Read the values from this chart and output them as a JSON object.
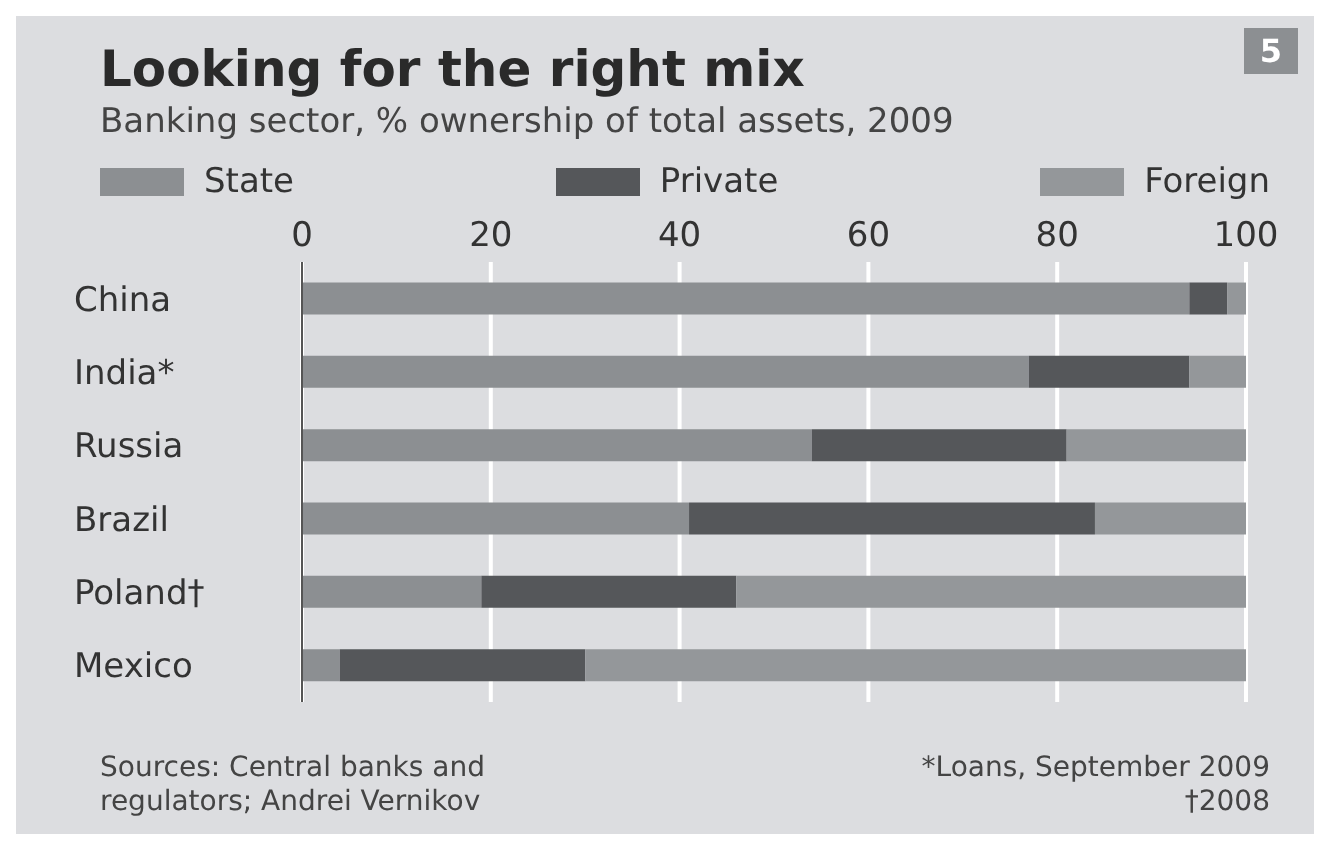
{
  "chart_data": {
    "type": "bar",
    "orientation": "horizontal",
    "stacked": true,
    "title": "Looking for the right mix",
    "subtitle": "Banking sector, % ownership of total assets, 2009",
    "categories": [
      "China",
      "India*",
      "Russia",
      "Brazil",
      "Poland†",
      "Mexico"
    ],
    "series": [
      {
        "name": "State",
        "color": "#8c8f92",
        "values": [
          94,
          77,
          54,
          41,
          19,
          4
        ]
      },
      {
        "name": "Private",
        "color": "#55575a",
        "values": [
          4,
          17,
          27,
          43,
          27,
          26
        ]
      },
      {
        "name": "Foreign",
        "color": "#94979a",
        "values": [
          2,
          6,
          19,
          16,
          54,
          70
        ]
      }
    ],
    "xlim": [
      0,
      100
    ],
    "xticks": [
      0,
      20,
      40,
      60,
      80,
      100
    ],
    "grid": "x",
    "legend": "top",
    "annotations": [
      "5",
      "Sources: Central banks and regulators; Andrei Vernikov",
      "*Loans, September 2009",
      "†2008"
    ]
  }
}
